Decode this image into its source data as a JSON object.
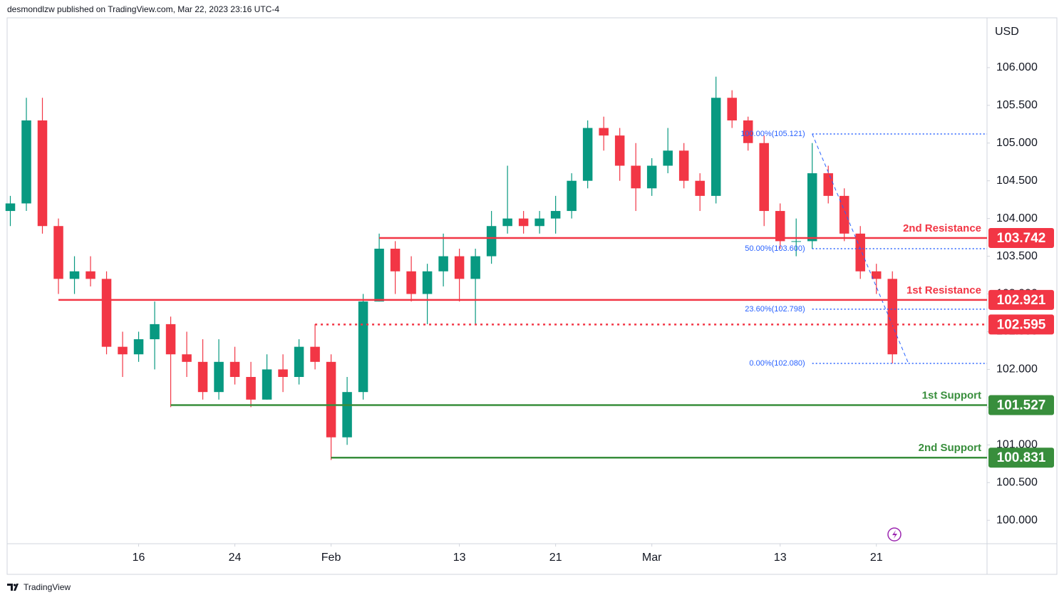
{
  "chart_data": {
    "type": "candlestick",
    "header": "desmondlzw published on TradingView.com, Mar 22, 2023 23:16 UTC-4",
    "currency": "USD",
    "footer": "TradingView",
    "x": [
      0,
      1,
      2,
      3,
      4,
      5,
      6,
      7,
      8,
      9,
      10,
      11,
      12,
      13,
      14,
      15,
      16,
      17,
      18,
      19,
      20,
      21,
      22,
      23,
      24,
      25,
      26,
      27,
      28,
      29,
      30,
      31,
      32,
      33,
      34,
      35,
      36,
      37,
      38,
      39,
      40,
      41,
      42,
      43,
      44,
      45,
      46,
      47,
      48,
      49,
      50,
      51,
      52,
      53,
      54,
      55
    ],
    "open": [
      104.1,
      104.2,
      105.3,
      103.9,
      103.2,
      103.3,
      103.2,
      102.3,
      102.2,
      102.4,
      102.6,
      102.2,
      102.1,
      101.7,
      102.1,
      101.9,
      101.6,
      102.0,
      101.9,
      102.3,
      102.1,
      101.1,
      101.7,
      102.9,
      103.6,
      103.3,
      103.0,
      103.3,
      103.5,
      103.2,
      103.5,
      103.9,
      104.0,
      103.9,
      104.0,
      104.1,
      104.5,
      105.2,
      105.1,
      104.7,
      104.4,
      104.7,
      104.9,
      104.5,
      104.3,
      105.6,
      105.3,
      105.0,
      104.1,
      103.7,
      103.7,
      104.6,
      104.3,
      103.8,
      103.3,
      103.2
    ],
    "high": [
      104.3,
      105.6,
      105.6,
      104.0,
      103.5,
      103.5,
      103.3,
      102.5,
      102.5,
      102.9,
      102.7,
      102.5,
      102.4,
      102.4,
      102.3,
      102.1,
      102.2,
      102.2,
      102.4,
      102.6,
      102.2,
      101.9,
      103.0,
      103.8,
      103.7,
      103.5,
      103.4,
      103.8,
      103.6,
      103.6,
      104.1,
      104.7,
      104.1,
      104.1,
      104.3,
      104.6,
      105.3,
      105.35,
      105.2,
      105.0,
      104.8,
      105.2,
      105.0,
      104.6,
      105.88,
      105.7,
      105.35,
      105.1,
      104.2,
      104.0,
      105.0,
      104.7,
      104.4,
      103.9,
      103.4,
      103.3
    ],
    "low": [
      103.9,
      104.1,
      103.8,
      103.0,
      103.0,
      103.1,
      102.2,
      101.9,
      102.1,
      102.0,
      101.5,
      101.9,
      101.6,
      101.6,
      101.8,
      101.5,
      101.6,
      101.7,
      101.8,
      102.0,
      100.8,
      101.0,
      101.6,
      102.9,
      103.0,
      102.9,
      102.6,
      103.1,
      102.9,
      102.6,
      103.4,
      103.8,
      103.8,
      103.8,
      103.8,
      104.0,
      104.4,
      104.9,
      104.5,
      104.1,
      104.3,
      104.6,
      104.4,
      104.1,
      104.2,
      105.2,
      104.9,
      103.9,
      103.6,
      103.5,
      103.6,
      104.2,
      103.7,
      103.2,
      103.0,
      102.08
    ],
    "close": [
      104.2,
      105.3,
      103.9,
      103.2,
      103.3,
      103.2,
      102.3,
      102.2,
      102.4,
      102.6,
      102.2,
      102.1,
      101.7,
      102.1,
      101.9,
      101.6,
      102.0,
      101.9,
      102.3,
      102.1,
      101.1,
      101.7,
      102.9,
      103.6,
      103.3,
      103.0,
      103.3,
      103.5,
      103.2,
      103.5,
      103.9,
      104.0,
      103.9,
      104.0,
      104.1,
      104.5,
      105.2,
      105.1,
      104.7,
      104.4,
      104.7,
      104.9,
      104.5,
      104.3,
      105.6,
      105.3,
      105.0,
      104.1,
      103.7,
      103.7,
      104.6,
      104.3,
      103.8,
      103.3,
      103.2,
      102.2
    ],
    "up_color": "#089981",
    "down_color": "#f23645",
    "xlim": [
      -0.2,
      60.9
    ],
    "xticks": [
      {
        "value": 8,
        "label": "16"
      },
      {
        "value": 14,
        "label": "24"
      },
      {
        "value": 20,
        "label": "Feb"
      },
      {
        "value": 28,
        "label": "13"
      },
      {
        "value": 34,
        "label": "21"
      },
      {
        "value": 40,
        "label": "Mar"
      },
      {
        "value": 48,
        "label": "13"
      },
      {
        "value": 54,
        "label": "21"
      }
    ],
    "ylim": [
      99.69,
      106.66
    ],
    "yticks": [
      {
        "value": 100,
        "label": "100.000"
      },
      {
        "value": 100.5,
        "label": "100.500"
      },
      {
        "value": 101,
        "label": "101.000"
      },
      {
        "value": 101.5,
        "label": "101.500"
      },
      {
        "value": 102,
        "label": "102.000"
      },
      {
        "value": 102.5,
        "label": "102.500"
      },
      {
        "value": 103,
        "label": "103.000"
      },
      {
        "value": 103.5,
        "label": "103.500"
      },
      {
        "value": 104,
        "label": "104.000"
      },
      {
        "value": 104.5,
        "label": "104.500"
      },
      {
        "value": 105,
        "label": "105.000"
      },
      {
        "value": 105.5,
        "label": "105.500"
      },
      {
        "value": 106,
        "label": "106.000"
      }
    ],
    "levels": [
      {
        "name": "2nd Resistance",
        "value": 103.742,
        "start": 23,
        "color": "#f23645",
        "style": "solid"
      },
      {
        "name": "1st Resistance",
        "value": 102.921,
        "start": 3,
        "color": "#f23645",
        "style": "solid"
      },
      {
        "value": 102.595,
        "start": 19,
        "color": "#f23645",
        "style": "dotted"
      },
      {
        "name": "1st Support",
        "value": 101.527,
        "start": 10,
        "color": "#388e3c",
        "style": "solid"
      },
      {
        "name": "2nd Support",
        "value": 100.831,
        "start": 20,
        "color": "#388e3c",
        "style": "solid"
      }
    ],
    "fib_x": [
      50,
      56
    ],
    "fib_color": "#2962ff",
    "fib_levels": [
      {
        "label": "100.00%(105.121)",
        "value": 105.121
      },
      {
        "label": "50.00%(103.600)",
        "value": 103.6
      },
      {
        "label": "23.60%(102.798)",
        "value": 102.798
      },
      {
        "label": "0.00%(102.080)",
        "value": 102.08
      }
    ]
  }
}
